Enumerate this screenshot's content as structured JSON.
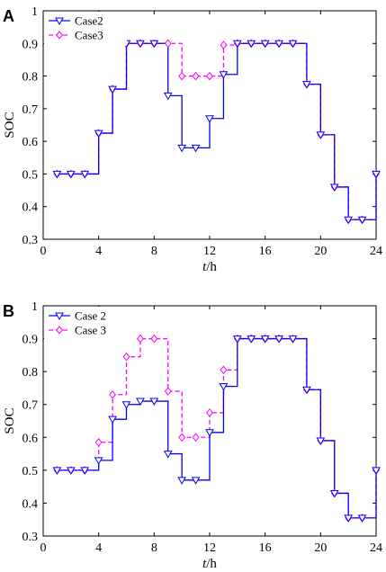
{
  "chart_data": [
    {
      "panel_label": "A",
      "type": "line",
      "step": "post",
      "xlabel_italic": "t",
      "xlabel_unit": "/h",
      "ylabel": "SOC",
      "xlim": [
        0,
        24
      ],
      "ylim": [
        0.3,
        1
      ],
      "xticks": [
        0,
        4,
        8,
        12,
        16,
        20,
        24
      ],
      "yticks": [
        0.3,
        0.4,
        0.5,
        0.6,
        0.7,
        0.8,
        0.9,
        1
      ],
      "grid": false,
      "legend_position": "top-left",
      "x": [
        1,
        2,
        3,
        4,
        5,
        6,
        7,
        8,
        9,
        10,
        11,
        12,
        13,
        14,
        15,
        16,
        17,
        18,
        19,
        20,
        21,
        22,
        23,
        24
      ],
      "series": [
        {
          "name": "Case2",
          "color": "#0000ff",
          "linestyle": "solid",
          "marker": "triangle-down",
          "values": [
            0.5,
            0.5,
            0.5,
            0.625,
            0.76,
            0.9,
            0.9,
            0.9,
            0.74,
            0.58,
            0.58,
            0.67,
            0.805,
            0.9,
            0.9,
            0.9,
            0.9,
            0.9,
            0.775,
            0.62,
            0.46,
            0.36,
            0.36,
            0.5
          ]
        },
        {
          "name": "Case3",
          "color": "#ff00ff",
          "linestyle": "dashed",
          "marker": "diamond",
          "values": [
            0.5,
            0.5,
            0.5,
            0.625,
            0.76,
            0.9,
            0.9,
            0.9,
            0.9,
            0.8,
            0.8,
            0.8,
            0.895,
            0.9,
            0.9,
            0.9,
            0.9,
            0.9,
            0.775,
            0.62,
            0.46,
            0.36,
            0.36,
            0.5
          ]
        }
      ]
    },
    {
      "panel_label": "B",
      "type": "line",
      "step": "post",
      "xlabel_italic": "t",
      "xlabel_unit": "/h",
      "ylabel": "SOC",
      "xlim": [
        0,
        24
      ],
      "ylim": [
        0.3,
        1
      ],
      "xticks": [
        0,
        4,
        8,
        12,
        16,
        20,
        24
      ],
      "yticks": [
        0.3,
        0.4,
        0.5,
        0.6,
        0.7,
        0.8,
        0.9,
        1
      ],
      "grid": false,
      "legend_position": "top-left",
      "x": [
        1,
        2,
        3,
        4,
        5,
        6,
        7,
        8,
        9,
        10,
        11,
        12,
        13,
        14,
        15,
        16,
        17,
        18,
        19,
        20,
        21,
        22,
        23,
        24
      ],
      "series": [
        {
          "name": "Case 2",
          "color": "#0000ff",
          "linestyle": "solid",
          "marker": "triangle-down",
          "values": [
            0.5,
            0.5,
            0.5,
            0.53,
            0.655,
            0.7,
            0.71,
            0.71,
            0.55,
            0.47,
            0.47,
            0.615,
            0.755,
            0.9,
            0.9,
            0.9,
            0.9,
            0.9,
            0.745,
            0.59,
            0.43,
            0.355,
            0.355,
            0.5
          ]
        },
        {
          "name": "Case 3",
          "color": "#ff00ff",
          "linestyle": "dashed",
          "marker": "diamond",
          "values": [
            0.5,
            0.5,
            0.5,
            0.585,
            0.73,
            0.845,
            0.9,
            0.9,
            0.74,
            0.6,
            0.6,
            0.675,
            0.805,
            0.9,
            0.9,
            0.9,
            0.9,
            0.9,
            0.745,
            0.59,
            0.43,
            0.355,
            0.355,
            0.5
          ]
        }
      ]
    }
  ]
}
